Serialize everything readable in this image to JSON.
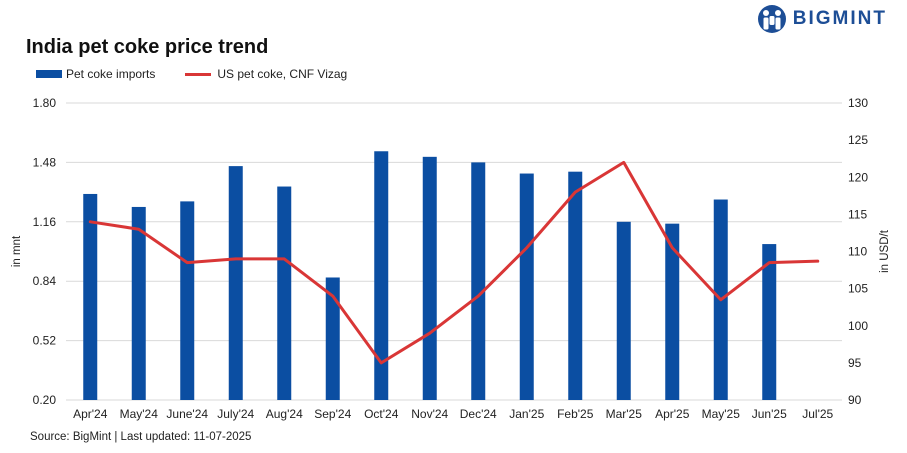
{
  "brand": {
    "name": "BIGMINT",
    "color": "#1d4e96"
  },
  "title": "India pet coke price trend",
  "source": "Source: BigMint | Last updated: 11-07-2025",
  "chart_data": {
    "type": "bar+line",
    "title": "India pet coke price trend",
    "categories": [
      "Apr'24",
      "May'24",
      "June'24",
      "July'24",
      "Aug'24",
      "Sep'24",
      "Oct'24",
      "Nov'24",
      "Dec'24",
      "Jan'25",
      "Feb'25",
      "Mar'25",
      "Apr'25",
      "May'25",
      "Jun'25",
      "Jul'25"
    ],
    "series": [
      {
        "name": "Pet coke imports",
        "type": "bar",
        "axis": "left",
        "color": "#0b4ea2",
        "values": [
          1.31,
          1.24,
          1.27,
          1.46,
          1.35,
          0.86,
          1.54,
          1.51,
          1.48,
          1.42,
          1.43,
          1.16,
          1.15,
          1.28,
          1.04,
          null
        ]
      },
      {
        "name": "US pet coke, CNF Vizag",
        "type": "line",
        "axis": "right",
        "color": "#d93636",
        "values": [
          114,
          113,
          108.5,
          109,
          109,
          104,
          95,
          99,
          104,
          110.5,
          118,
          122,
          110.5,
          103.5,
          108.5,
          108.7
        ]
      }
    ],
    "y_left": {
      "label": "in mnt",
      "min": 0.2,
      "max": 1.8,
      "ticks": [
        "0.20",
        "0.52",
        "0.84",
        "1.16",
        "1.48",
        "1.80"
      ]
    },
    "y_right": {
      "label": "in USD/t",
      "min": 90,
      "max": 130,
      "ticks": [
        "90",
        "95",
        "100",
        "105",
        "110",
        "115",
        "120",
        "125",
        "130"
      ]
    },
    "grid": true,
    "legend_position": "top-left"
  }
}
